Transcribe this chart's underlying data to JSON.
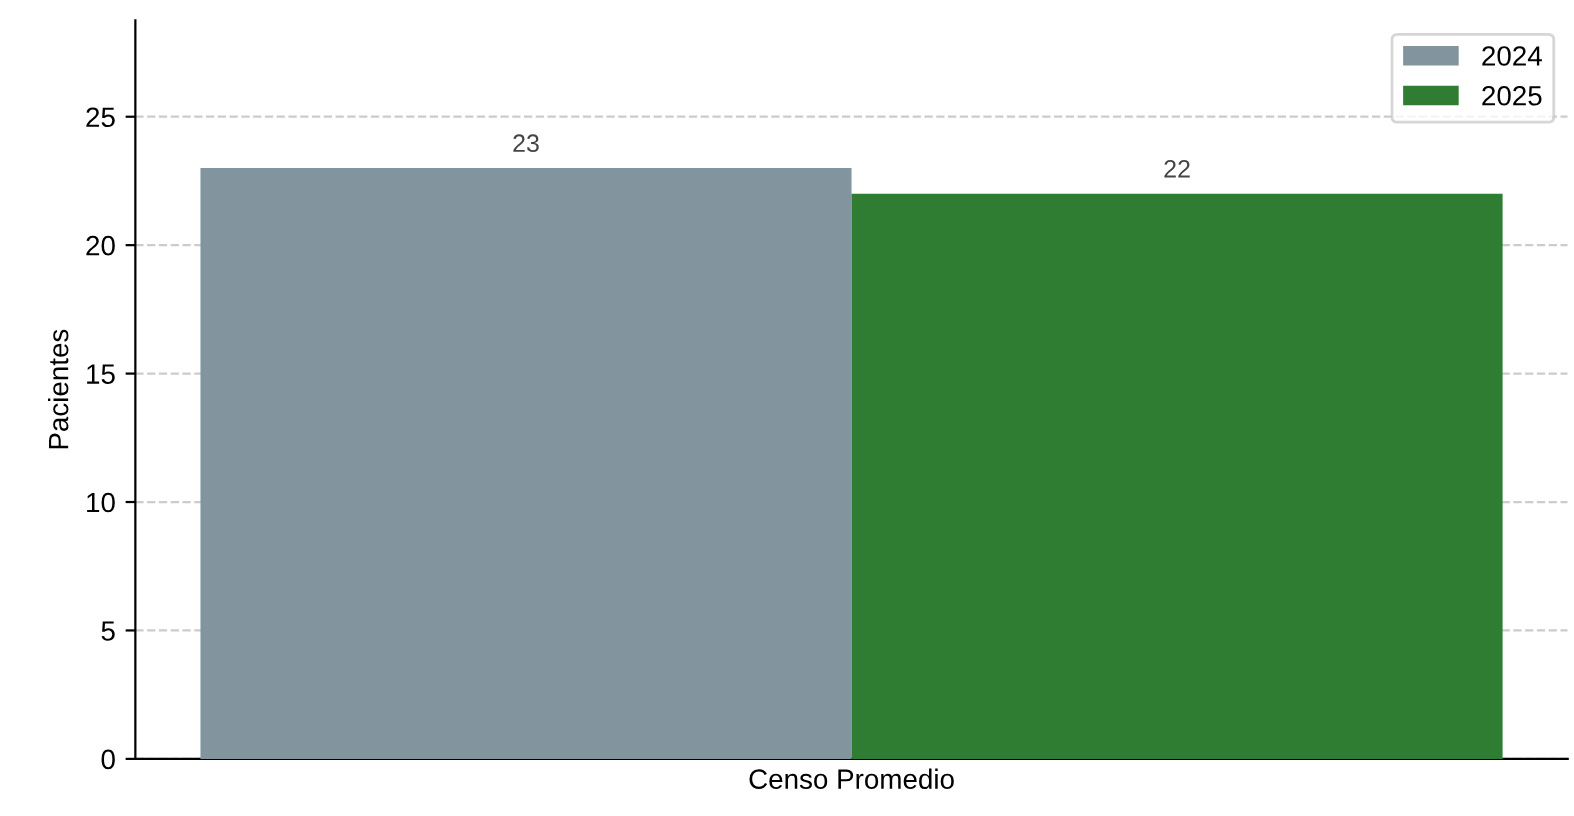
{
  "chart_data": {
    "type": "bar",
    "ylabel": "Pacientes",
    "categories": [
      "Censo Promedio"
    ],
    "series": [
      {
        "name": "2024",
        "color": "#82959e",
        "values": [
          23
        ]
      },
      {
        "name": "2025",
        "color": "#2e7d32",
        "values": [
          22
        ]
      }
    ],
    "ylim": [
      0,
      28.75
    ],
    "yticks": [
      0,
      5,
      10,
      15,
      20,
      25
    ],
    "grid": "y",
    "legend": "top right",
    "data_labels": true
  }
}
